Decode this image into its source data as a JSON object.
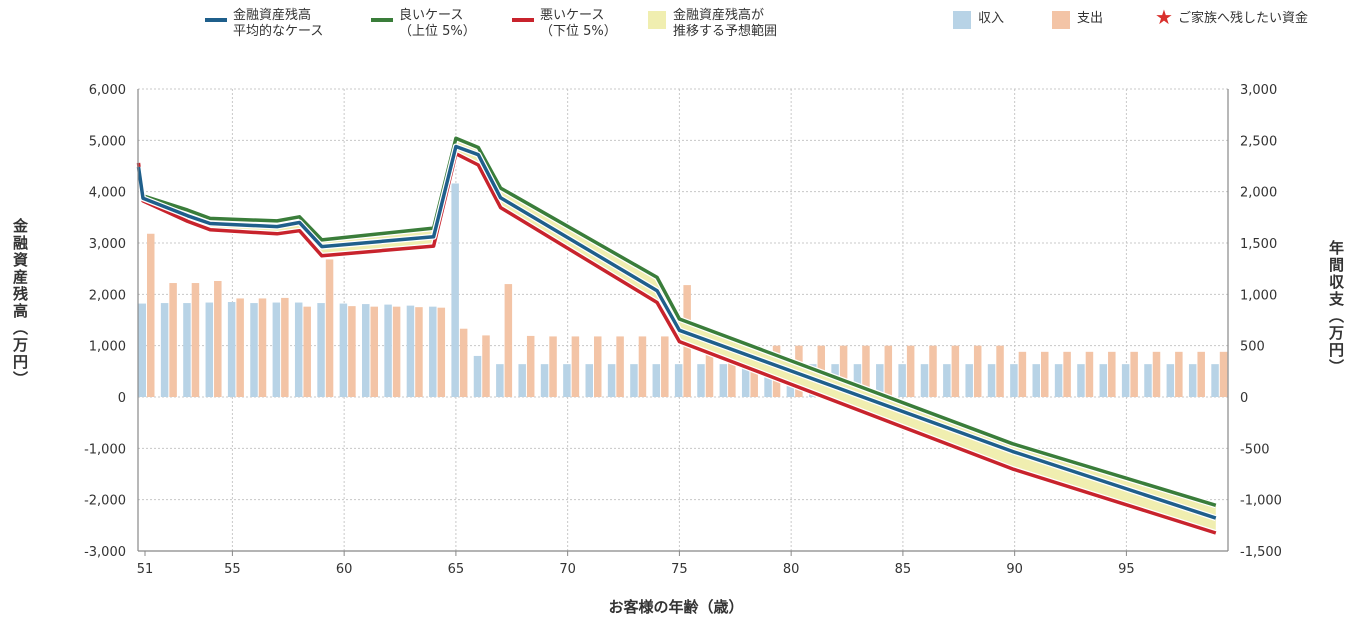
{
  "legend": {
    "avg": "金融資産残高\n平均的なケース",
    "good": "良いケース\n（上位 5%）",
    "bad": "悪いケース\n（下位 5%）",
    "range": "金融資産残高が\n推移する予想範囲",
    "income": "収入",
    "expense": "支出",
    "star": "ご家族へ残したい資金"
  },
  "colors": {
    "avg": "#1f5f8b",
    "good": "#3a7d3a",
    "bad": "#c8232c",
    "range": "#f0eeb0",
    "income": "#b8d3e6",
    "expense": "#f3c4a6",
    "star": "#d9302c"
  },
  "icons": {
    "star": "star-icon"
  },
  "chart_data": {
    "type": "line+bar",
    "xlabel": "お客様の年齢（歳）",
    "ylabel_left": "金融資産残高（万円）",
    "ylabel_right": "年間収支（万円）",
    "x_range": [
      51,
      99
    ],
    "x_ticks": [
      51,
      55,
      60,
      65,
      70,
      75,
      80,
      85,
      90,
      95
    ],
    "y_left_range": [
      -3000,
      6000
    ],
    "y_left_ticks": [
      "6,000",
      "5,000",
      "4,000",
      "3,000",
      "2,000",
      "1,000",
      "0",
      "-1,000",
      "-2,000",
      "-3,000"
    ],
    "y_right_range": [
      -1500,
      3000
    ],
    "y_right_ticks": [
      "3,000",
      "2,500",
      "2,000",
      "1,500",
      "1,000",
      "500",
      "0",
      "-500",
      "-1,000",
      "-1,500"
    ],
    "grid": true,
    "balance_series": [
      {
        "name": "金融資産残高 平均的なケース",
        "key": "avg",
        "points": [
          [
            50.8,
            4480
          ],
          [
            51,
            3870
          ],
          [
            53,
            3530
          ],
          [
            54,
            3380
          ],
          [
            57,
            3320
          ],
          [
            58,
            3400
          ],
          [
            59,
            2930
          ],
          [
            64,
            3120
          ],
          [
            65,
            4880
          ],
          [
            66,
            4720
          ],
          [
            67,
            3880
          ],
          [
            74,
            2070
          ],
          [
            75,
            1300
          ],
          [
            89.9,
            -1060
          ],
          [
            99,
            -2360
          ]
        ]
      },
      {
        "name": "良いケース（上位 5%）",
        "key": "good",
        "points": [
          [
            50.8,
            4500
          ],
          [
            51,
            3920
          ],
          [
            53,
            3640
          ],
          [
            54,
            3480
          ],
          [
            57,
            3430
          ],
          [
            58,
            3510
          ],
          [
            59,
            3060
          ],
          [
            64,
            3290
          ],
          [
            65,
            5040
          ],
          [
            66,
            4860
          ],
          [
            67,
            4070
          ],
          [
            74,
            2330
          ],
          [
            75,
            1520
          ],
          [
            89.9,
            -910
          ],
          [
            99,
            -2110
          ]
        ]
      },
      {
        "name": "悪いケース（下位 5%）",
        "key": "bad",
        "points": [
          [
            50.8,
            4560
          ],
          [
            51,
            3820
          ],
          [
            53,
            3420
          ],
          [
            54,
            3260
          ],
          [
            57,
            3180
          ],
          [
            58,
            3240
          ],
          [
            59,
            2750
          ],
          [
            64,
            2940
          ],
          [
            65,
            4740
          ],
          [
            66,
            4520
          ],
          [
            67,
            3690
          ],
          [
            74,
            1840
          ],
          [
            75,
            1080
          ],
          [
            89.9,
            -1400
          ],
          [
            99,
            -2650
          ]
        ]
      }
    ],
    "annual_series": [
      {
        "name": "収入",
        "key": "income",
        "ages": [
          51,
          52,
          53,
          54,
          55,
          56,
          57,
          58,
          59,
          60,
          61,
          62,
          63,
          64,
          65,
          66,
          67,
          68,
          69,
          70,
          71,
          72,
          73,
          74,
          75,
          76,
          77,
          78,
          79,
          80,
          81,
          82,
          83,
          84,
          85,
          86,
          87,
          88,
          89,
          90,
          91,
          92,
          93,
          94,
          95,
          96,
          97,
          98,
          99
        ],
        "values": [
          910,
          915,
          915,
          920,
          925,
          915,
          920,
          920,
          915,
          910,
          905,
          900,
          890,
          880,
          2080,
          400,
          320,
          320,
          320,
          320,
          320,
          320,
          320,
          320,
          320,
          320,
          320,
          320,
          320,
          320,
          320,
          320,
          320,
          320,
          320,
          320,
          320,
          320,
          320,
          320,
          320,
          320,
          320,
          320,
          320,
          320,
          320,
          320,
          320
        ]
      },
      {
        "name": "支出",
        "key": "expense",
        "ages": [
          51,
          52,
          53,
          54,
          55,
          56,
          57,
          58,
          59,
          60,
          61,
          62,
          63,
          64,
          65,
          66,
          67,
          68,
          69,
          70,
          71,
          72,
          73,
          74,
          75,
          76,
          77,
          78,
          79,
          80,
          81,
          82,
          83,
          84,
          85,
          86,
          87,
          88,
          89,
          90,
          91,
          92,
          93,
          94,
          95,
          96,
          97,
          98,
          99
        ],
        "values": [
          1590,
          1110,
          1110,
          1130,
          960,
          960,
          965,
          880,
          1340,
          885,
          880,
          880,
          875,
          870,
          665,
          600,
          1100,
          595,
          590,
          590,
          590,
          590,
          590,
          590,
          1090,
          500,
          500,
          500,
          500,
          500,
          500,
          500,
          500,
          500,
          500,
          500,
          500,
          500,
          500,
          440,
          440,
          440,
          440,
          440,
          440,
          440,
          440,
          440,
          440
        ]
      }
    ]
  }
}
